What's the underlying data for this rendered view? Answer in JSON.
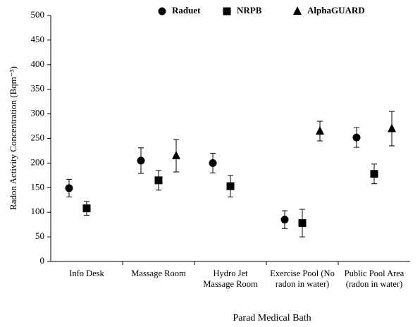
{
  "chart_data": {
    "type": "scatter",
    "x_label": "Parad Medical Bath",
    "y_label": "Radon Activity Concentration (Bqm⁻³)",
    "categories": [
      "Info Desk",
      "Massage Room",
      "Hydro Jet Massage Room",
      "Exercise Pool (No radon in water)",
      "Public Pool Area (radon in water)"
    ],
    "series": [
      {
        "name": "Raduet",
        "color": "#000000",
        "marker": "circle",
        "values": [
          149,
          205,
          200,
          85,
          252
        ],
        "errors": [
          18,
          26,
          20,
          18,
          20
        ]
      },
      {
        "name": "NRPB",
        "color": "#000000",
        "marker": "square",
        "values": [
          108,
          165,
          153,
          78,
          178
        ],
        "errors": [
          14,
          20,
          22,
          28,
          20
        ]
      },
      {
        "name": "AlphaGUARD",
        "color": "#000000",
        "marker": "triangle",
        "values": [
          null,
          215,
          null,
          265,
          270
        ],
        "errors": [
          null,
          33,
          null,
          20,
          35
        ]
      }
    ],
    "ylim": [
      0,
      500
    ],
    "yticks": [
      0,
      50,
      100,
      150,
      200,
      250,
      300,
      350,
      400,
      450,
      500
    ],
    "legend": "top"
  }
}
